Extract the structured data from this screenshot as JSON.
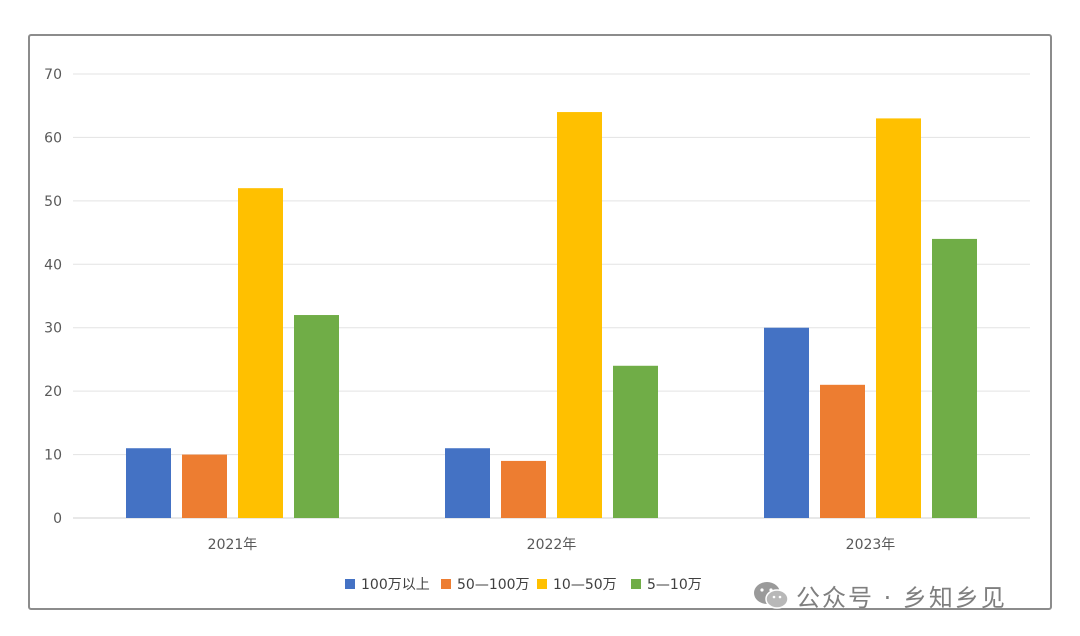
{
  "chart_data": {
    "type": "bar",
    "title": "",
    "xlabel": "",
    "ylabel": "",
    "categories": [
      "2021年",
      "2022年",
      "2023年"
    ],
    "series": [
      {
        "name": "100万以上",
        "color": "#4472c4",
        "values": [
          11,
          11,
          30
        ]
      },
      {
        "name": "50—100万",
        "color": "#ed7d31",
        "values": [
          10,
          9,
          21
        ]
      },
      {
        "name": "10—50万",
        "color": "#ffc000",
        "values": [
          52,
          64,
          63
        ]
      },
      {
        "name": "5—10万",
        "color": "#70ad47",
        "values": [
          32,
          24,
          44
        ]
      }
    ],
    "ylim": [
      0,
      70
    ],
    "yticks": [
      0,
      10,
      20,
      30,
      40,
      50,
      60,
      70
    ],
    "grid": true,
    "legend_position": "bottom"
  },
  "watermark": {
    "icon": "wechat-icon",
    "text": "公众号 · 乡知乡见"
  }
}
